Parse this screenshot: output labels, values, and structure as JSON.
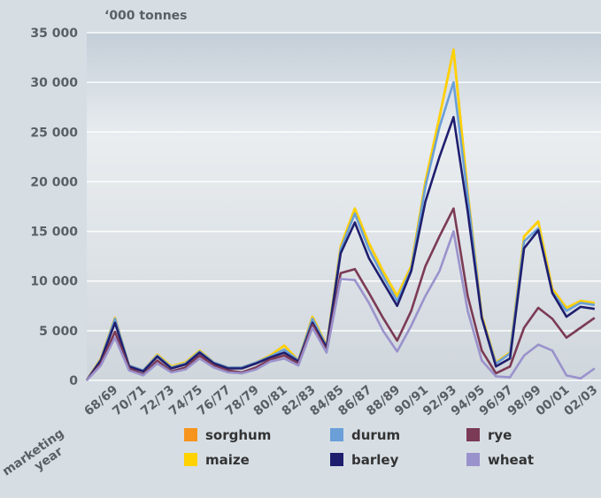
{
  "chart_data": {
    "type": "stacked-line",
    "y_label": "‘000 tonnes",
    "x_label": "marketing year",
    "categories": [
      null,
      null,
      "68/69",
      null,
      "70/71",
      null,
      "72/73",
      null,
      "74/75",
      null,
      "76/77",
      null,
      "78/79",
      null,
      "80/81",
      null,
      "82/83",
      null,
      "84/85",
      null,
      "86/87",
      null,
      "88/89",
      null,
      "90/91",
      null,
      "92/93",
      null,
      "94/95",
      null,
      "96/97",
      null,
      "98/99",
      null,
      "00/01",
      null,
      "02/03"
    ],
    "ylim": [
      0,
      35000
    ],
    "yticks": [
      0,
      {
        "value": 5000,
        "label": "5 000"
      },
      {
        "value": 10000,
        "label": "10 000"
      },
      {
        "value": 15000,
        "label": "15 000"
      },
      {
        "value": 20000,
        "label": "20 000"
      },
      {
        "value": 25000,
        "label": "25 000"
      },
      {
        "value": 30000,
        "label": "30 000"
      },
      {
        "value": 35000,
        "label": "35 000"
      }
    ],
    "grid": true,
    "legend": "bottom",
    "series": [
      {
        "name": "wheat",
        "color": "#9a92cc",
        "values": [
          0,
          1500,
          4300,
          1000,
          500,
          1700,
          800,
          1100,
          2200,
          1300,
          800,
          700,
          1100,
          1900,
          2200,
          1500,
          5300,
          2800,
          10200,
          10100,
          7800,
          5000,
          2900,
          5500,
          8500,
          11000,
          15000,
          7000,
          2000,
          400,
          300,
          2500,
          3600,
          3000,
          500,
          200,
          1200
        ]
      },
      {
        "name": "rye",
        "color": "#7b3a55",
        "values": [
          0,
          200,
          600,
          200,
          100,
          300,
          100,
          200,
          300,
          200,
          200,
          100,
          200,
          200,
          300,
          200,
          300,
          200,
          600,
          1100,
          1000,
          1300,
          1100,
          1500,
          3000,
          3500,
          2300,
          1500,
          1000,
          300,
          1100,
          2800,
          3700,
          3200,
          3800,
          5100,
          5100
        ]
      },
      {
        "name": "barley",
        "color": "#1f1e6e",
        "values": [
          0,
          300,
          900,
          200,
          300,
          400,
          300,
          300,
          300,
          200,
          200,
          400,
          400,
          200,
          300,
          200,
          200,
          300,
          2000,
          4700,
          3500,
          3600,
          3500,
          4000,
          6500,
          8000,
          9200,
          8500,
          3300,
          700,
          800,
          8000,
          7800,
          2600,
          2100,
          2100,
          900
        ]
      },
      {
        "name": "durum",
        "color": "#6a9fd8",
        "values": [
          0,
          100,
          400,
          100,
          100,
          100,
          100,
          100,
          100,
          100,
          100,
          100,
          100,
          100,
          300,
          100,
          400,
          100,
          400,
          900,
          900,
          600,
          500,
          200,
          1500,
          3000,
          3500,
          1500,
          0,
          300,
          500,
          700,
          200,
          100,
          600,
          400,
          400
        ]
      },
      {
        "name": "maize",
        "color": "#ffd200",
        "values": [
          0,
          100,
          100,
          0,
          0,
          100,
          100,
          100,
          100,
          0,
          0,
          0,
          0,
          100,
          400,
          0,
          200,
          100,
          300,
          500,
          600,
          500,
          500,
          300,
          500,
          1000,
          3300,
          500,
          200,
          100,
          100,
          500,
          700,
          300,
          300,
          200,
          200
        ]
      },
      {
        "name": "sorghum",
        "color": "#f7941d",
        "values": [
          0,
          0,
          0,
          0,
          0,
          0,
          0,
          0,
          0,
          0,
          0,
          0,
          0,
          0,
          0,
          0,
          0,
          0,
          0,
          0,
          0,
          0,
          0,
          0,
          0,
          0,
          0,
          0,
          0,
          0,
          0,
          0,
          0,
          0,
          0,
          0,
          0
        ]
      }
    ]
  }
}
